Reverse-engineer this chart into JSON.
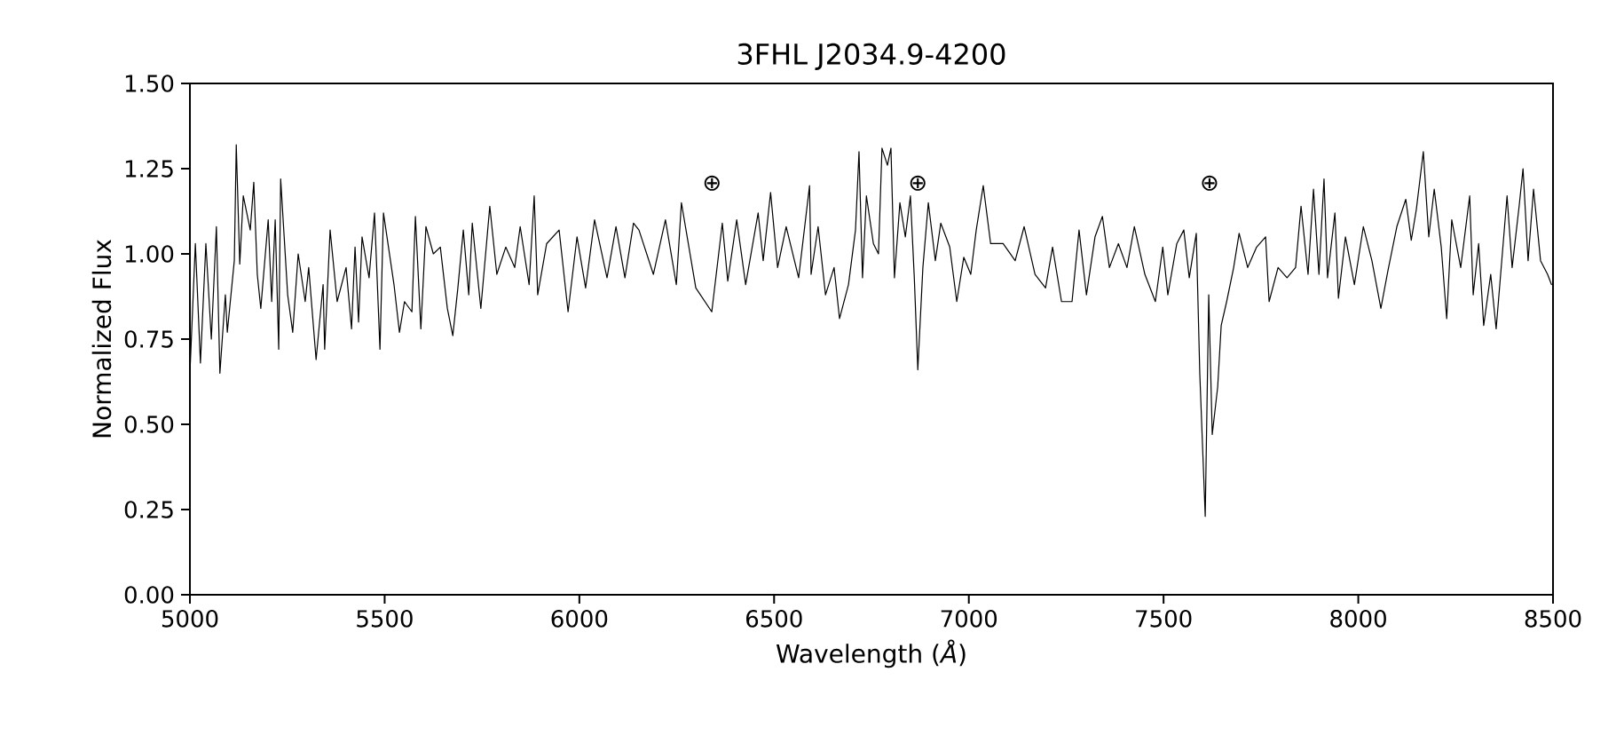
{
  "chart_data": {
    "type": "line",
    "title": "3FHL J2034.9-4200",
    "xlabel": "Wavelength (*Å*)",
    "ylabel": "Normalized Flux",
    "xlim": [
      5000,
      8500
    ],
    "ylim": [
      0,
      1.5
    ],
    "xticks": [
      5000,
      5500,
      6000,
      6500,
      7000,
      7500,
      8000,
      8500
    ],
    "yticks": [
      {
        "value": 0,
        "label": "0.00"
      },
      {
        "value": 0.25,
        "label": "0.25"
      },
      {
        "value": 0.5,
        "label": "0.50"
      },
      {
        "value": 0.75,
        "label": "0.75"
      },
      {
        "value": 1,
        "label": "1.00"
      },
      {
        "value": 1.25,
        "label": "1.25"
      },
      {
        "value": 1.5,
        "label": "1.50"
      }
    ],
    "annotations": [
      "⊕",
      "⊕",
      "⊕"
    ],
    "series": [
      {
        "color": "#000000",
        "x": [
          5000,
          5014,
          5027,
          5041,
          5055,
          5068,
          5077,
          5091,
          5096,
          5114,
          5119,
          5128,
          5137,
          5155,
          5164,
          5173,
          5182,
          5201,
          5210,
          5219,
          5228,
          5233,
          5251,
          5264,
          5278,
          5296,
          5305,
          5324,
          5342,
          5346,
          5360,
          5378,
          5401,
          5415,
          5424,
          5433,
          5442,
          5460,
          5474,
          5488,
          5497,
          5524,
          5538,
          5551,
          5570,
          5579,
          5593,
          5606,
          5625,
          5643,
          5661,
          5675,
          5688,
          5702,
          5716,
          5725,
          5747,
          5770,
          5788,
          5811,
          5834,
          5848,
          5871,
          5884,
          5893,
          5916,
          5948,
          5971,
          5994,
          6016,
          6039,
          6071,
          6094,
          6117,
          6139,
          6153,
          6190,
          6221,
          6249,
          6262,
          6299,
          6340,
          6367,
          6381,
          6404,
          6427,
          6459,
          6472,
          6491,
          6509,
          6531,
          6563,
          6591,
          6595,
          6613,
          6632,
          6654,
          6668,
          6691,
          6709,
          6718,
          6727,
          6737,
          6755,
          6768,
          6777,
          6791,
          6800,
          6809,
          6823,
          6837,
          6850,
          6860,
          6869,
          6882,
          6896,
          6914,
          6928,
          6951,
          6969,
          6987,
          7005,
          7019,
          7037,
          7056,
          7088,
          7119,
          7142,
          7170,
          7197,
          7215,
          7238,
          7265,
          7283,
          7302,
          7324,
          7343,
          7361,
          7384,
          7406,
          7425,
          7452,
          7479,
          7498,
          7511,
          7534,
          7552,
          7566,
          7584,
          7593,
          7607,
          7616,
          7625,
          7639,
          7648,
          7662,
          7680,
          7694,
          7716,
          7739,
          7762,
          7771,
          7794,
          7817,
          7839,
          7853,
          7871,
          7885,
          7899,
          7912,
          7921,
          7940,
          7949,
          7967,
          7990,
          8013,
          8035,
          8058,
          8076,
          8099,
          8122,
          8136,
          8149,
          8167,
          8181,
          8195,
          8213,
          8227,
          8240,
          8263,
          8286,
          8295,
          8309,
          8322,
          8340,
          8354,
          8372,
          8382,
          8395,
          8413,
          8423,
          8436,
          8450,
          8468,
          8486,
          8496
        ],
        "values": [
          0.65,
          1.03,
          0.68,
          1.03,
          0.75,
          1.08,
          0.65,
          0.88,
          0.77,
          0.98,
          1.32,
          0.97,
          1.17,
          1.07,
          1.21,
          0.94,
          0.84,
          1.1,
          0.86,
          1.1,
          0.72,
          1.22,
          0.88,
          0.77,
          1.0,
          0.86,
          0.96,
          0.69,
          0.91,
          0.72,
          1.07,
          0.86,
          0.96,
          0.78,
          1.02,
          0.8,
          1.05,
          0.93,
          1.12,
          0.72,
          1.12,
          0.91,
          0.77,
          0.86,
          0.83,
          1.11,
          0.78,
          1.08,
          1.0,
          1.02,
          0.84,
          0.76,
          0.9,
          1.07,
          0.88,
          1.09,
          0.84,
          1.14,
          0.94,
          1.02,
          0.96,
          1.08,
          0.91,
          1.17,
          0.88,
          1.03,
          1.07,
          0.83,
          1.05,
          0.9,
          1.1,
          0.93,
          1.08,
          0.93,
          1.09,
          1.07,
          0.94,
          1.1,
          0.91,
          1.15,
          0.9,
          0.83,
          1.09,
          0.92,
          1.1,
          0.91,
          1.12,
          0.98,
          1.18,
          0.96,
          1.08,
          0.93,
          1.2,
          0.94,
          1.08,
          0.88,
          0.96,
          0.81,
          0.91,
          1.07,
          1.3,
          0.93,
          1.17,
          1.03,
          1.0,
          1.31,
          1.26,
          1.31,
          0.93,
          1.15,
          1.05,
          1.17,
          0.93,
          0.66,
          0.96,
          1.15,
          0.98,
          1.09,
          1.02,
          0.86,
          0.99,
          0.94,
          1.07,
          1.2,
          1.03,
          1.03,
          0.98,
          1.08,
          0.94,
          0.9,
          1.02,
          0.86,
          0.86,
          1.07,
          0.88,
          1.05,
          1.11,
          0.96,
          1.03,
          0.96,
          1.08,
          0.94,
          0.86,
          1.02,
          0.88,
          1.03,
          1.07,
          0.93,
          1.06,
          0.65,
          0.23,
          0.88,
          0.47,
          0.61,
          0.79,
          0.86,
          0.96,
          1.06,
          0.96,
          1.02,
          1.05,
          0.86,
          0.96,
          0.93,
          0.96,
          1.14,
          0.94,
          1.19,
          0.94,
          1.22,
          0.93,
          1.12,
          0.87,
          1.05,
          0.91,
          1.08,
          0.98,
          0.84,
          0.95,
          1.08,
          1.16,
          1.04,
          1.13,
          1.3,
          1.05,
          1.19,
          1.02,
          0.81,
          1.1,
          0.96,
          1.17,
          0.88,
          1.03,
          0.79,
          0.94,
          0.78,
          1.03,
          1.17,
          0.96,
          1.14,
          1.25,
          0.98,
          1.19,
          0.98,
          0.94,
          0.91
        ]
      }
    ]
  }
}
